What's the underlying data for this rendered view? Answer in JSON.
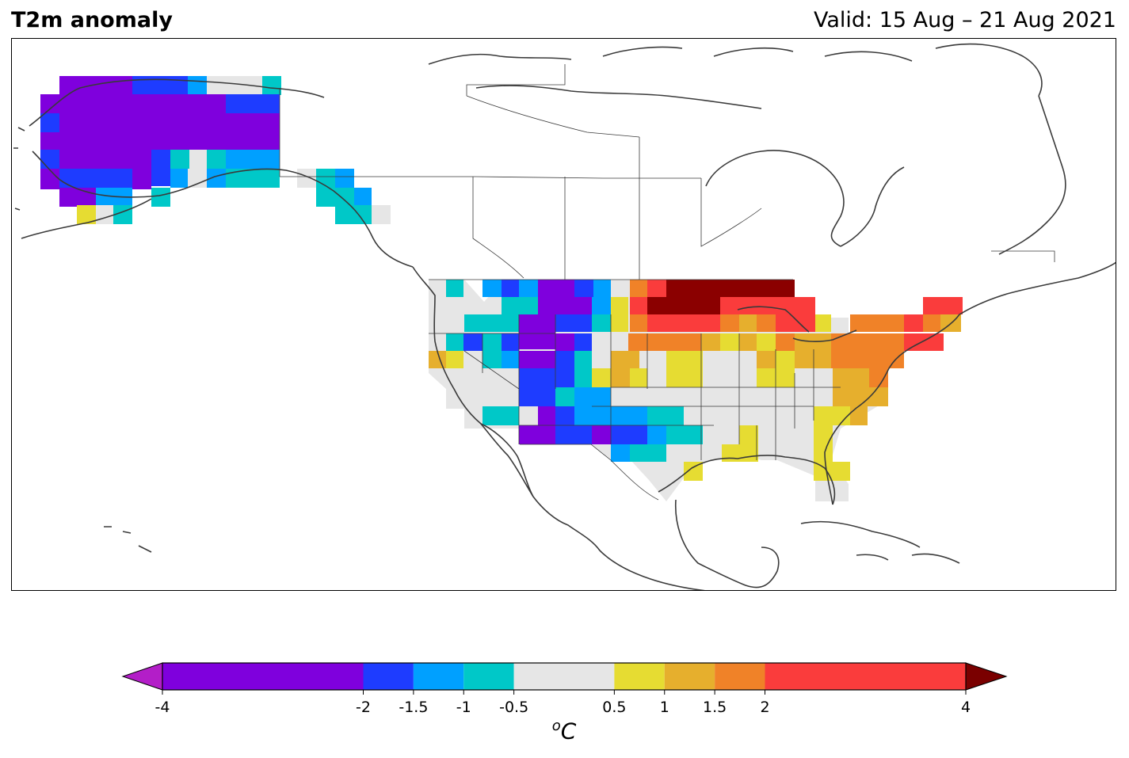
{
  "header": {
    "title": "T2m anomaly",
    "valid": "Valid: 15 Aug – 21 Aug 2021"
  },
  "colorbar": {
    "unit_prefix": "o",
    "unit": "C",
    "ticks": [
      "-4",
      "-2",
      "-1.5",
      "-1",
      "-0.5",
      "0.5",
      "1",
      "1.5",
      "2",
      "4"
    ],
    "extend": "both",
    "under_color": "#b31ec8",
    "over_color": "#7a0000",
    "bins": [
      {
        "from": -4,
        "to": -2,
        "color": "#7f00dd"
      },
      {
        "from": -2,
        "to": -1.5,
        "color": "#1e3cff"
      },
      {
        "from": -1.5,
        "to": -1,
        "color": "#00a0ff"
      },
      {
        "from": -1,
        "to": -0.5,
        "color": "#00c8c8"
      },
      {
        "from": -0.5,
        "to": 0.5,
        "color": "#e6e6e6"
      },
      {
        "from": 0.5,
        "to": 1,
        "color": "#e6dc32"
      },
      {
        "from": 1,
        "to": 1.5,
        "color": "#e6af2d"
      },
      {
        "from": 1.5,
        "to": 2,
        "color": "#f08228"
      },
      {
        "from": 2,
        "to": 4,
        "color": "#fa3c3c"
      }
    ]
  },
  "map": {
    "region": "North America",
    "period": "15 Aug – 21 Aug 2021"
  }
}
